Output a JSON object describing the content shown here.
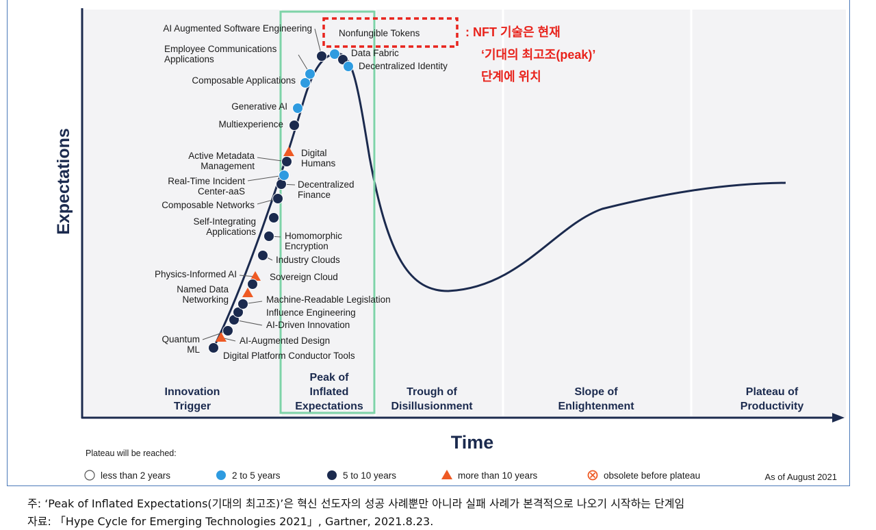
{
  "chart_data": {
    "type": "line",
    "xlabel": "Time",
    "ylabel": "Expectations",
    "as_of": "As of August 2021",
    "phases": [
      {
        "lines": [
          "Innovation",
          "Trigger"
        ]
      },
      {
        "lines": [
          "Peak of",
          "Inflated",
          "Expectations"
        ]
      },
      {
        "lines": [
          "Trough of",
          "Disillusionment"
        ]
      },
      {
        "lines": [
          "Slope of",
          "Enlightenment"
        ]
      },
      {
        "lines": [
          "Plateau of",
          "Productivity"
        ]
      }
    ],
    "legend": {
      "title": "Plateau will be reached:",
      "items": [
        {
          "label": "less than 2 years",
          "marker": "open-circle",
          "color": "#ffffff"
        },
        {
          "label": "2 to 5 years",
          "marker": "circle",
          "color": "#2e9be0"
        },
        {
          "label": "5 to 10 years",
          "marker": "circle",
          "color": "#1b2a4e"
        },
        {
          "label": "more than 10 years",
          "marker": "triangle",
          "color": "#ee5a24"
        },
        {
          "label": "obsolete before plateau",
          "marker": "cross-circle",
          "color": "#ee5a24"
        }
      ]
    },
    "technologies": [
      {
        "name": "Digital Platform Conductor Tools",
        "category": "5 to 10 years"
      },
      {
        "name": "Quantum ML",
        "category": "5 to 10 years"
      },
      {
        "name": "AI-Augmented Design",
        "category": "more than 10 years"
      },
      {
        "name": "AI-Driven Innovation",
        "category": "5 to 10 years"
      },
      {
        "name": "Named Data Networking",
        "category": "more than 10 years"
      },
      {
        "name": "Influence Engineering",
        "category": "5 to 10 years"
      },
      {
        "name": "Machine-Readable Legislation",
        "category": "5 to 10 years"
      },
      {
        "name": "Physics-Informed AI",
        "category": "more than 10 years"
      },
      {
        "name": "Sovereign Cloud",
        "category": "5 to 10 years"
      },
      {
        "name": "Industry Clouds",
        "category": "5 to 10 years"
      },
      {
        "name": "Homomorphic Encryption",
        "category": "5 to 10 years"
      },
      {
        "name": "Self-Integrating Applications",
        "category": "5 to 10 years"
      },
      {
        "name": "Composable Networks",
        "category": "5 to 10 years"
      },
      {
        "name": "Decentralized Finance",
        "category": "5 to 10 years"
      },
      {
        "name": "Real-Time Incident Center-aaS",
        "category": "2 to 5 years"
      },
      {
        "name": "Active Metadata Management",
        "category": "5 to 10 years"
      },
      {
        "name": "Digital Humans",
        "category": "more than 10 years"
      },
      {
        "name": "Multiexperience",
        "category": "5 to 10 years"
      },
      {
        "name": "Generative AI",
        "category": "2 to 5 years"
      },
      {
        "name": "Composable Applications",
        "category": "2 to 5 years"
      },
      {
        "name": "Employee Communications Applications",
        "category": "2 to 5 years"
      },
      {
        "name": "AI Augmented Software Engineering",
        "category": "5 to 10 years"
      },
      {
        "name": "Nonfungible Tokens",
        "category": "2 to 5 years"
      },
      {
        "name": "Data Fabric",
        "category": "5 to 10 years"
      },
      {
        "name": "Decentralized Identity",
        "category": "2 to 5 years"
      }
    ],
    "callout": {
      "highlight": "Nonfungible Tokens",
      "lines": [
        ":  NFT 기술은 현재",
        "‘기대의 최고조(peak)’",
        "단계에 위치"
      ]
    }
  },
  "footnotes": [
    "주: ‘Peak of Inflated Expectations(기대의 최고조)’은 혁신 선도자의 성공 사례뿐만 아니라 실패 사례가 본격적으로 나오기 시작하는 단계임",
    "자료: 「Hype Cycle for Emerging Technologies 2021」, Gartner, 2021.8.23."
  ],
  "colors": {
    "navy": "#1b2a4e",
    "blue": "#2e9be0",
    "orange": "#ee5a24",
    "highlight_box": "#7ed3a8",
    "callout": "#e8231c",
    "frame": "#4a78b8"
  }
}
